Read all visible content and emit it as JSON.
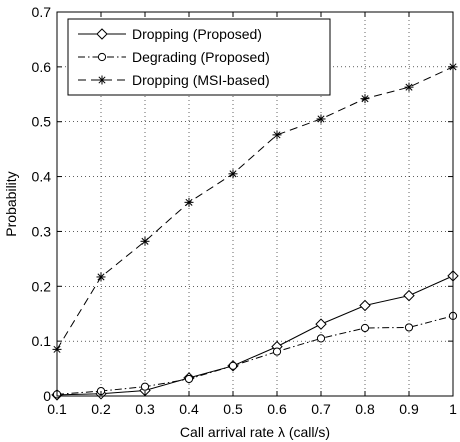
{
  "chart_data": {
    "type": "line",
    "xlabel": "Call arrival rate λ (call/s)",
    "ylabel": "Probability",
    "xlim": [
      0.1,
      1
    ],
    "ylim": [
      0,
      0.7
    ],
    "grid": true,
    "legend_position": "top-left",
    "x": [
      0.1,
      0.2,
      0.3,
      0.4,
      0.5,
      0.6,
      0.7,
      0.8,
      0.9,
      1
    ],
    "x_ticks": [
      "0.1",
      "0.2",
      "0.3",
      "0.4",
      "0.5",
      "0.6",
      "0.7",
      "0.8",
      "0.9",
      "1"
    ],
    "y_ticks": [
      "0",
      "0.1",
      "0.2",
      "0.3",
      "0.4",
      "0.5",
      "0.6",
      "0.7"
    ],
    "series": [
      {
        "name": "Dropping (Proposed)",
        "marker": "diamond",
        "line_style": "solid",
        "values": [
          0.002,
          0.004,
          0.01,
          0.033,
          0.055,
          0.09,
          0.131,
          0.165,
          0.183,
          0.219
        ]
      },
      {
        "name": "Degrading (Proposed)",
        "marker": "circle",
        "line_style": "dash-dot",
        "values": [
          0.003,
          0.009,
          0.017,
          0.031,
          0.055,
          0.081,
          0.105,
          0.124,
          0.125,
          0.146
        ]
      },
      {
        "name": "Dropping (MSI-based)",
        "marker": "star",
        "line_style": "dashed",
        "values": [
          0.085,
          0.217,
          0.282,
          0.353,
          0.405,
          0.476,
          0.505,
          0.542,
          0.563,
          0.6
        ]
      }
    ]
  }
}
